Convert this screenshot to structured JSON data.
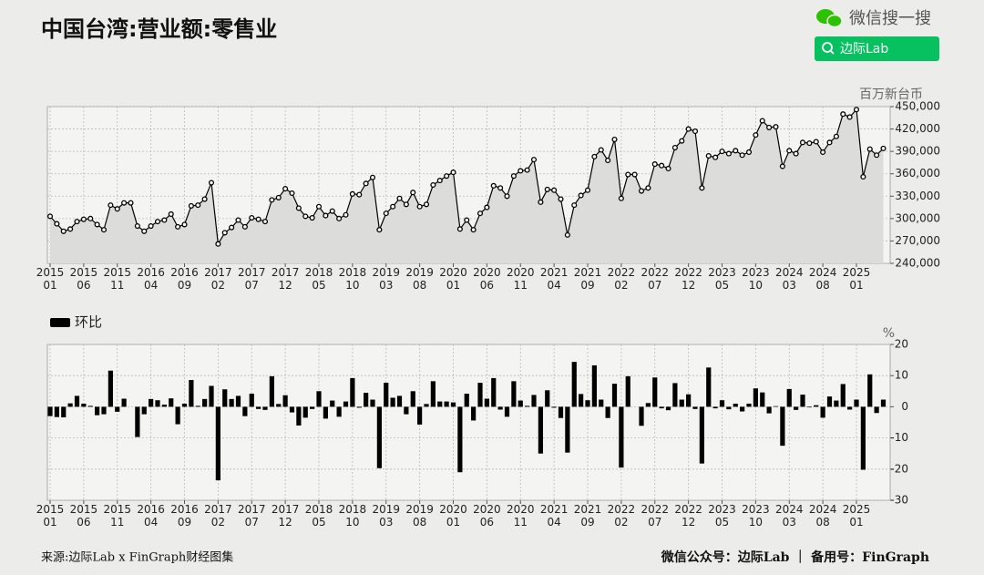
{
  "header": {
    "title": "中国台湾:营业额:零售业",
    "brand": "微信搜一搜",
    "search": "边际Lab"
  },
  "footer": {
    "source": "来源:边际Lab x FinGraph财经图集",
    "account": "微信公众号：边际Lab ｜ 备用号：FinGraph"
  },
  "chart_data": [
    {
      "type": "line",
      "unit": "百万新台币",
      "color": "#000000",
      "axis_side": "right",
      "grid": true,
      "x": [
        "2015-01",
        "2015-02",
        "2015-03",
        "2015-04",
        "2015-05",
        "2015-06",
        "2015-07",
        "2015-08",
        "2015-09",
        "2015-10",
        "2015-11",
        "2015-12",
        "2016-01",
        "2016-02",
        "2016-03",
        "2016-04",
        "2016-05",
        "2016-06",
        "2016-07",
        "2016-08",
        "2016-09",
        "2016-10",
        "2016-11",
        "2016-12",
        "2017-01",
        "2017-02",
        "2017-03",
        "2017-04",
        "2017-05",
        "2017-06",
        "2017-07",
        "2017-08",
        "2017-09",
        "2017-10",
        "2017-11",
        "2017-12",
        "2018-01",
        "2018-02",
        "2018-03",
        "2018-04",
        "2018-05",
        "2018-06",
        "2018-07",
        "2018-08",
        "2018-09",
        "2018-10",
        "2018-11",
        "2018-12",
        "2019-01",
        "2019-02",
        "2019-03",
        "2019-04",
        "2019-05",
        "2019-06",
        "2019-07",
        "2019-08",
        "2019-09",
        "2019-10",
        "2019-11",
        "2019-12",
        "2020-01",
        "2020-02",
        "2020-03",
        "2020-04",
        "2020-05",
        "2020-06",
        "2020-07",
        "2020-08",
        "2020-09",
        "2020-10",
        "2020-11",
        "2020-12",
        "2021-01",
        "2021-02",
        "2021-03",
        "2021-04",
        "2021-05",
        "2021-06",
        "2021-07",
        "2021-08",
        "2021-09",
        "2021-10",
        "2021-11",
        "2021-12",
        "2022-01",
        "2022-02",
        "2022-03",
        "2022-04",
        "2022-05",
        "2022-06",
        "2022-07",
        "2022-08",
        "2022-09",
        "2022-10",
        "2022-11",
        "2022-12",
        "2023-01",
        "2023-02",
        "2023-03",
        "2023-04",
        "2023-05",
        "2023-06",
        "2023-07",
        "2023-08",
        "2023-09",
        "2023-10",
        "2023-11",
        "2023-12",
        "2024-01",
        "2024-02",
        "2024-03",
        "2024-04",
        "2024-05",
        "2024-06",
        "2024-07",
        "2024-08",
        "2024-09",
        "2024-10",
        "2024-11",
        "2024-12",
        "2025-01",
        "2025-02",
        "2025-03",
        "2025-04",
        "2025-05"
      ],
      "values": [
        303000,
        293000,
        283000,
        286000,
        296000,
        299000,
        300000,
        292000,
        285000,
        318000,
        313000,
        321000,
        321000,
        290000,
        283000,
        290000,
        296000,
        298000,
        306000,
        289000,
        292000,
        317000,
        318000,
        326000,
        348000,
        266000,
        281000,
        288000,
        298000,
        289000,
        301000,
        299000,
        296000,
        325000,
        328000,
        340000,
        334000,
        314000,
        303000,
        301000,
        316000,
        304000,
        310000,
        300000,
        305000,
        333000,
        332000,
        347000,
        355000,
        285000,
        307000,
        316000,
        327000,
        319000,
        335000,
        316000,
        319000,
        345000,
        351000,
        357000,
        362000,
        286000,
        298000,
        285000,
        307000,
        315000,
        344000,
        341000,
        330000,
        357000,
        364000,
        365000,
        379000,
        322000,
        339000,
        338000,
        326000,
        278000,
        318000,
        331000,
        338000,
        383000,
        392000,
        378000,
        406000,
        327000,
        359000,
        359000,
        337000,
        341000,
        373000,
        371000,
        367000,
        395000,
        404000,
        420000,
        417000,
        341000,
        384000,
        382000,
        390000,
        387000,
        391000,
        385000,
        389000,
        412000,
        431000,
        422000,
        423000,
        370000,
        391000,
        387000,
        402000,
        401000,
        403000,
        389000,
        402000,
        410000,
        440000,
        436000,
        446000,
        356000,
        393000,
        385000,
        394000
      ],
      "ylim": [
        240000,
        450000
      ],
      "yticks": [
        {
          "value": 240000,
          "label": "240,000"
        },
        {
          "value": 270000,
          "label": "270,000"
        },
        {
          "value": 300000,
          "label": "300,000"
        },
        {
          "value": 330000,
          "label": "330,000"
        },
        {
          "value": 360000,
          "label": "360,000"
        },
        {
          "value": 390000,
          "label": "390,000"
        },
        {
          "value": 420000,
          "label": "420,000"
        },
        {
          "value": 450000,
          "label": "450,000"
        }
      ],
      "xticks": [
        "2015-01",
        "2015-06",
        "2015-11",
        "2016-04",
        "2016-09",
        "2017-02",
        "2017-07",
        "2017-12",
        "2018-05",
        "2018-10",
        "2019-03",
        "2019-08",
        "2020-01",
        "2020-06",
        "2020-11",
        "2021-04",
        "2021-09",
        "2022-02",
        "2022-07",
        "2022-12",
        "2023-05",
        "2023-10",
        "2024-03",
        "2024-08",
        "2025-01"
      ]
    },
    {
      "type": "bar",
      "unit": "%",
      "axis_side": "right",
      "grid": true,
      "x": [
        "2015-01",
        "2015-02",
        "2015-03",
        "2015-04",
        "2015-05",
        "2015-06",
        "2015-07",
        "2015-08",
        "2015-09",
        "2015-10",
        "2015-11",
        "2015-12",
        "2016-01",
        "2016-02",
        "2016-03",
        "2016-04",
        "2016-05",
        "2016-06",
        "2016-07",
        "2016-08",
        "2016-09",
        "2016-10",
        "2016-11",
        "2016-12",
        "2017-01",
        "2017-02",
        "2017-03",
        "2017-04",
        "2017-05",
        "2017-06",
        "2017-07",
        "2017-08",
        "2017-09",
        "2017-10",
        "2017-11",
        "2017-12",
        "2018-01",
        "2018-02",
        "2018-03",
        "2018-04",
        "2018-05",
        "2018-06",
        "2018-07",
        "2018-08",
        "2018-09",
        "2018-10",
        "2018-11",
        "2018-12",
        "2019-01",
        "2019-02",
        "2019-03",
        "2019-04",
        "2019-05",
        "2019-06",
        "2019-07",
        "2019-08",
        "2019-09",
        "2019-10",
        "2019-11",
        "2019-12",
        "2020-01",
        "2020-02",
        "2020-03",
        "2020-04",
        "2020-05",
        "2020-06",
        "2020-07",
        "2020-08",
        "2020-09",
        "2020-10",
        "2020-11",
        "2020-12",
        "2021-01",
        "2021-02",
        "2021-03",
        "2021-04",
        "2021-05",
        "2021-06",
        "2021-07",
        "2021-08",
        "2021-09",
        "2021-10",
        "2021-11",
        "2021-12",
        "2022-01",
        "2022-02",
        "2022-03",
        "2022-04",
        "2022-05",
        "2022-06",
        "2022-07",
        "2022-08",
        "2022-09",
        "2022-10",
        "2022-11",
        "2022-12",
        "2023-01",
        "2023-02",
        "2023-03",
        "2023-04",
        "2023-05",
        "2023-06",
        "2023-07",
        "2023-08",
        "2023-09",
        "2023-10",
        "2023-11",
        "2023-12",
        "2024-01",
        "2024-02",
        "2024-03",
        "2024-04",
        "2024-05",
        "2024-06",
        "2024-07",
        "2024-08",
        "2024-09",
        "2024-10",
        "2024-11",
        "2024-12",
        "2025-01",
        "2025-02",
        "2025-03",
        "2025-04",
        "2025-05"
      ],
      "series": [
        {
          "name": "环比",
          "color": "#000000",
          "values": [
            -3,
            -3.3,
            -3.4,
            1.1,
            3.5,
            1,
            0.3,
            -2.7,
            -2.4,
            11.6,
            -1.6,
            2.6,
            0,
            -9.7,
            -2.4,
            2.5,
            2.1,
            0.7,
            2.7,
            -5.6,
            1,
            8.6,
            0.3,
            2.5,
            6.7,
            -23.6,
            5.6,
            2.5,
            3.5,
            -3,
            4.2,
            -0.7,
            -1,
            9.8,
            0.9,
            3.7,
            -1.8,
            -6,
            -3.5,
            -0.7,
            5,
            -3.8,
            2,
            -3.2,
            1.7,
            9.2,
            -0.3,
            4.5,
            2.3,
            -19.7,
            7.7,
            2.9,
            3.5,
            -2.4,
            5,
            -5.7,
            0.9,
            8.2,
            1.7,
            1.7,
            1.4,
            -21,
            4.2,
            -4.4,
            7.7,
            2.6,
            9.2,
            -0.9,
            -3.2,
            8.2,
            2,
            0.3,
            3.8,
            -15,
            5.3,
            -0.3,
            -3.6,
            -14.7,
            14.4,
            4.1,
            2.1,
            13.3,
            2.3,
            -3.6,
            7.4,
            -19.5,
            9.8,
            0,
            -6.1,
            1.2,
            9.4,
            -0.5,
            -1.1,
            7.6,
            2.3,
            4,
            -0.7,
            -18.2,
            12.6,
            -0.5,
            2.1,
            -0.8,
            1,
            -1.5,
            1,
            5.9,
            4.6,
            -2.1,
            0.2,
            -12.5,
            5.7,
            -1,
            3.9,
            -0.2,
            0.5,
            -3.5,
            3.3,
            2,
            7.3,
            -0.9,
            2.3,
            -20.2,
            10.4,
            -2,
            2.3
          ]
        }
      ],
      "ylim": [
        -30,
        20
      ],
      "yticks": [
        -30,
        -20,
        -10,
        0,
        10,
        20
      ],
      "xticks": [
        "2015-01",
        "2015-06",
        "2015-11",
        "2016-04",
        "2016-09",
        "2017-02",
        "2017-07",
        "2017-12",
        "2018-05",
        "2018-10",
        "2019-03",
        "2019-08",
        "2020-01",
        "2020-06",
        "2020-11",
        "2021-04",
        "2021-09",
        "2022-02",
        "2022-07",
        "2022-12",
        "2023-05",
        "2023-10",
        "2024-03",
        "2024-08",
        "2025-01"
      ]
    }
  ]
}
